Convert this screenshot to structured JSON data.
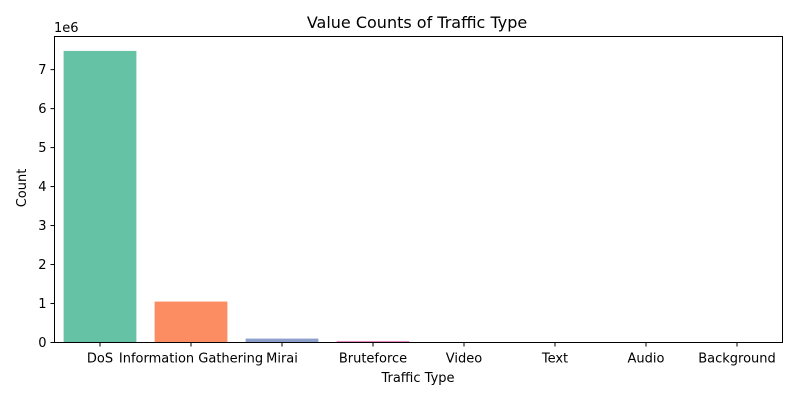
{
  "chart_data": {
    "type": "bar",
    "title": "Value Counts of Traffic Type",
    "xlabel": "Traffic Type",
    "ylabel": "Count",
    "y_scale_label": "1e6",
    "categories": [
      "DoS",
      "Information Gathering",
      "Mirai",
      "Bruteforce",
      "Video",
      "Text",
      "Audio",
      "Background"
    ],
    "values": [
      7480000,
      1050000,
      100000,
      40000,
      4000,
      3000,
      2000,
      1000
    ],
    "colors": [
      "#66c2a5",
      "#fc8d62",
      "#8da0cb",
      "#e78ac3",
      "#a6d854",
      "#ffd92f",
      "#e5c494",
      "#b3b3b3"
    ],
    "ylim": [
      0,
      7850000
    ],
    "yticks": [
      0,
      1,
      2,
      3,
      4,
      5,
      6,
      7
    ],
    "grid": false,
    "legend": "none"
  }
}
